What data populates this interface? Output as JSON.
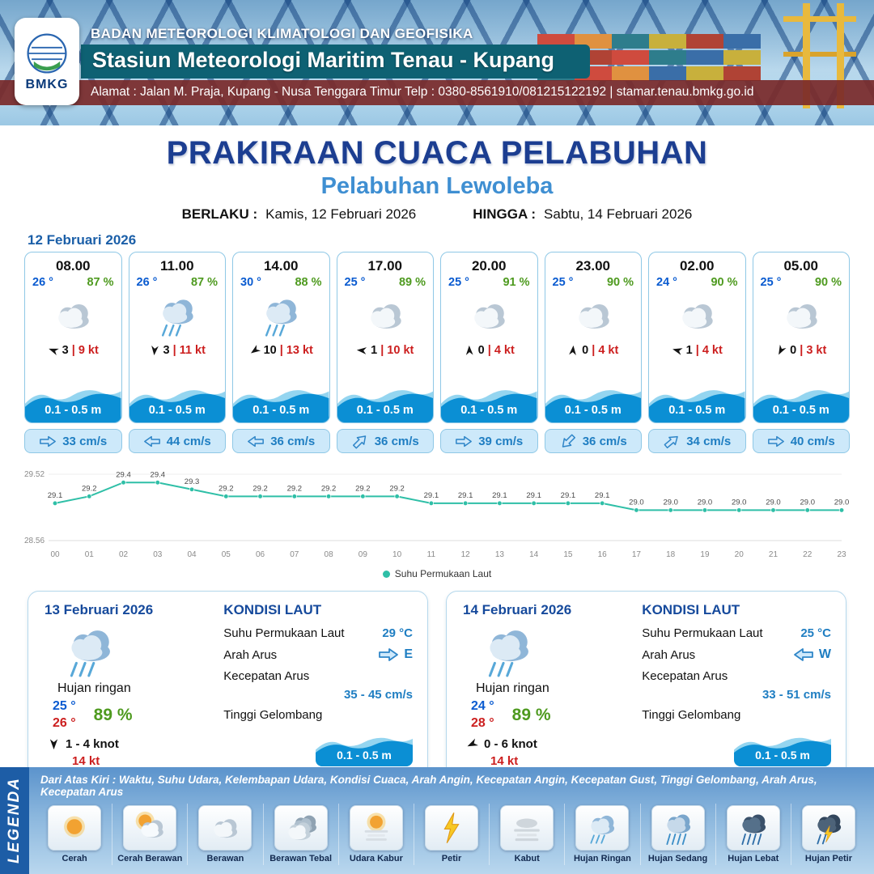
{
  "colors": {
    "accent_blue": "#1b5fa8",
    "temp_blue": "#0a5bd0",
    "humidity_green": "#4e9a1f",
    "speed_red": "#cc1f1f",
    "wave_blue": "#0b8fd4",
    "line_teal": "#2fbfa7",
    "header_teal": "#0e6173",
    "header_maroon": "#7a2929"
  },
  "header": {
    "agency": "BADAN METEOROLOGI KLIMATOLOGI DAN GEOFISIKA",
    "station": "Stasiun Meteorologi Maritim Tenau - Kupang",
    "address": "Alamat : Jalan M. Praja, Kupang - Nusa Tenggara Timur Telp : 0380-8561910/081215122192  | stamar.tenau.bmkg.go.id",
    "logo_text": "BMKG"
  },
  "title": {
    "main": "PRAKIRAAN CUACA PELABUHAN",
    "sub": "Pelabuhan Lewoleba"
  },
  "validity": {
    "from_label": "BERLAKU :",
    "from_value": "Kamis, 12 Februari 2026",
    "to_label": "HINGGA :",
    "to_value": "Sabtu, 14 Februari 2026"
  },
  "forecast_date": "12 Februari 2026",
  "hourly": [
    {
      "time": "08.00",
      "temp": "26 °",
      "humidity": "87 %",
      "icon": "berawan",
      "wind_value": "3",
      "wind_speed": "9 kt",
      "wind_dir_deg": 200,
      "wave": "0.1 - 0.5 m",
      "current_speed": "33 cm/s",
      "current_dir_deg": 0
    },
    {
      "time": "11.00",
      "temp": "26 °",
      "humidity": "87 %",
      "icon": "hujan-ringan",
      "wind_value": "3",
      "wind_speed": "11 kt",
      "wind_dir_deg": 95,
      "wave": "0.1 - 0.5 m",
      "current_speed": "44 cm/s",
      "current_dir_deg": 180
    },
    {
      "time": "14.00",
      "temp": "30 °",
      "humidity": "88 %",
      "icon": "hujan-ringan",
      "wind_value": "10",
      "wind_speed": "13 kt",
      "wind_dir_deg": 145,
      "wave": "0.1 - 0.5 m",
      "current_speed": "36 cm/s",
      "current_dir_deg": 180
    },
    {
      "time": "17.00",
      "temp": "25 °",
      "humidity": "89 %",
      "icon": "berawan",
      "wind_value": "1",
      "wind_speed": "10 kt",
      "wind_dir_deg": 185,
      "wave": "0.1 - 0.5 m",
      "current_speed": "36 cm/s",
      "current_dir_deg": -45
    },
    {
      "time": "20.00",
      "temp": "25 °",
      "humidity": "91 %",
      "icon": "berawan",
      "wind_value": "0",
      "wind_speed": "4 kt",
      "wind_dir_deg": 268,
      "wave": "0.1 - 0.5 m",
      "current_speed": "39 cm/s",
      "current_dir_deg": 0
    },
    {
      "time": "23.00",
      "temp": "25 °",
      "humidity": "90 %",
      "icon": "berawan",
      "wind_value": "0",
      "wind_speed": "4 kt",
      "wind_dir_deg": 275,
      "wave": "0.1 - 0.5 m",
      "current_speed": "36 cm/s",
      "current_dir_deg": 135
    },
    {
      "time": "02.00",
      "temp": "24 °",
      "humidity": "90 %",
      "icon": "berawan",
      "wind_value": "1",
      "wind_speed": "4 kt",
      "wind_dir_deg": 195,
      "wave": "0.1 - 0.5 m",
      "current_speed": "34 cm/s",
      "current_dir_deg": -40
    },
    {
      "time": "05.00",
      "temp": "25 °",
      "humidity": "90 %",
      "icon": "berawan",
      "wind_value": "0",
      "wind_speed": "3 kt",
      "wind_dir_deg": 118,
      "wave": "0.1 - 0.5 m",
      "current_speed": "40 cm/s",
      "current_dir_deg": 0
    }
  ],
  "chart_data": {
    "type": "line",
    "series_label": "Suhu Permukaan Laut",
    "x": [
      "00",
      "01",
      "02",
      "03",
      "04",
      "05",
      "06",
      "07",
      "08",
      "09",
      "10",
      "11",
      "12",
      "13",
      "14",
      "15",
      "16",
      "17",
      "18",
      "19",
      "20",
      "21",
      "22",
      "23"
    ],
    "values": [
      29.1,
      29.2,
      29.4,
      29.4,
      29.3,
      29.2,
      29.2,
      29.2,
      29.2,
      29.2,
      29.2,
      29.1,
      29.1,
      29.1,
      29.1,
      29.1,
      29.1,
      29.0,
      29.0,
      29.0,
      29.0,
      29.0,
      29.0,
      29.0
    ],
    "ylim": [
      28.56,
      29.52
    ],
    "line_color": "#2fbfa7",
    "grid": false,
    "legend_position": "bottom"
  },
  "daily": [
    {
      "date": "13 Februari 2026",
      "condition": "Hujan ringan",
      "icon": "hujan-ringan",
      "temp_min": "25 °",
      "temp_max": "26 °",
      "humidity": "89 %",
      "wind_range": "1 - 4 knot",
      "wind_dir_deg": 90,
      "gust": "14 kt",
      "sea_title": "KONDISI LAUT",
      "sst_label": "Suhu Permukaan Laut",
      "sst_value": "29 °C",
      "current_dir_label": "Arah Arus",
      "current_dir_value": "E",
      "current_dir_deg": 0,
      "current_speed_label": "Kecepatan Arus",
      "current_speed_value": "35 - 45 cm/s",
      "wave_label": "Tinggi Gelombang",
      "wave_value": "0.1 - 0.5 m"
    },
    {
      "date": "14 Februari 2026",
      "condition": "Hujan ringan",
      "icon": "hujan-ringan",
      "temp_min": "24 °",
      "temp_max": "28 °",
      "humidity": "89 %",
      "wind_range": "0  - 6 knot",
      "wind_dir_deg": 155,
      "gust": "14 kt",
      "sea_title": "KONDISI LAUT",
      "sst_label": "Suhu Permukaan Laut",
      "sst_value": "25 °C",
      "current_dir_label": "Arah Arus",
      "current_dir_value": "W",
      "current_dir_deg": 180,
      "current_speed_label": "Kecepatan Arus",
      "current_speed_value": "33 - 51 cm/s",
      "wave_label": "Tinggi Gelombang",
      "wave_value": "0.1 - 0.5 m"
    }
  ],
  "legend": {
    "title": "LEGENDA",
    "note": "Dari Atas Kiri : Waktu, Suhu Udara, Kelembapan Udara, Kondisi Cuaca, Arah Angin, Kecepatan Angin, Kecepatan Gust, Tinggi Gelombang, Arah Arus, Kecepatan Arus",
    "items": [
      {
        "label": "Cerah",
        "icon": "cerah"
      },
      {
        "label": "Cerah Berawan",
        "icon": "cerah-berawan"
      },
      {
        "label": "Berawan",
        "icon": "berawan"
      },
      {
        "label": "Berawan Tebal",
        "icon": "berawan-tebal"
      },
      {
        "label": "Udara Kabur",
        "icon": "udara-kabur"
      },
      {
        "label": "Petir",
        "icon": "petir"
      },
      {
        "label": "Kabut",
        "icon": "kabut"
      },
      {
        "label": "Hujan Ringan",
        "icon": "hujan-ringan"
      },
      {
        "label": "Hujan Sedang",
        "icon": "hujan-sedang"
      },
      {
        "label": "Hujan Lebat",
        "icon": "hujan-lebat"
      },
      {
        "label": "Hujan Petir",
        "icon": "hujan-petir"
      }
    ]
  }
}
